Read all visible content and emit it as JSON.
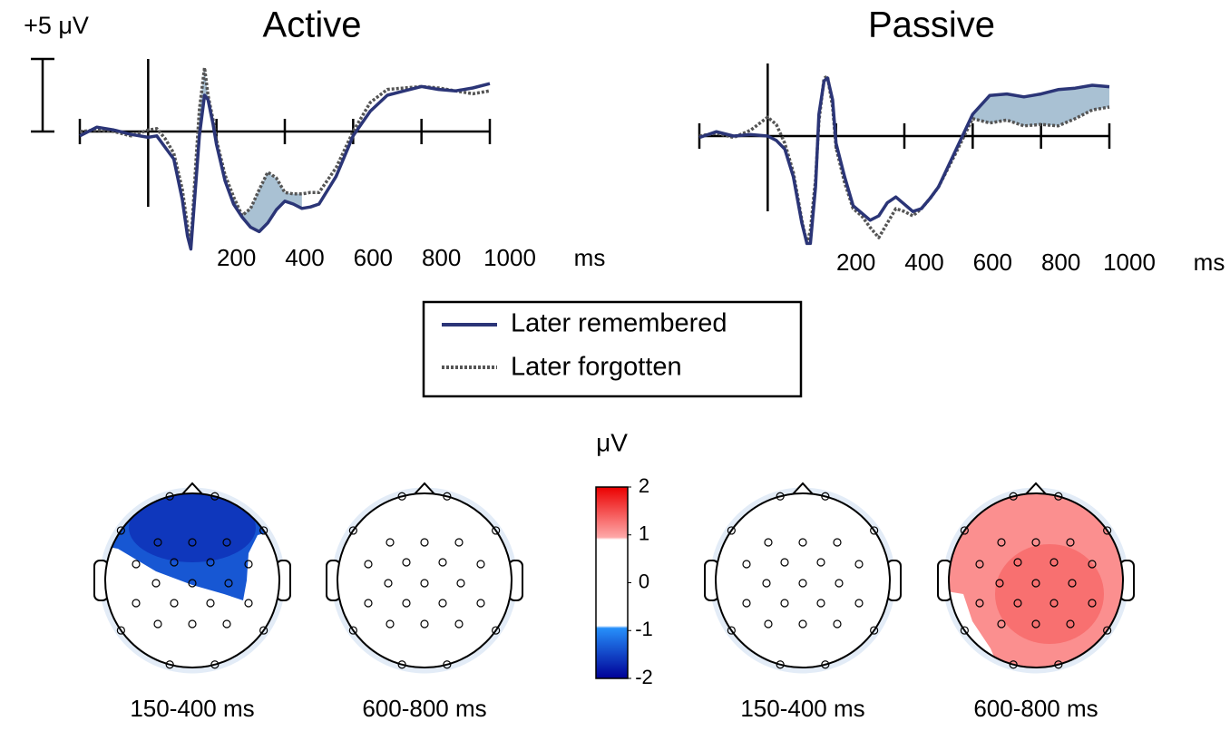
{
  "chart_data": [
    {
      "type": "line",
      "title": "Active",
      "x": [
        -200,
        -150,
        -100,
        -50,
        0,
        25,
        50,
        75,
        100,
        115,
        125,
        140,
        150,
        165,
        175,
        190,
        200,
        225,
        250,
        275,
        300,
        325,
        350,
        375,
        400,
        425,
        450,
        475,
        500,
        550,
        600,
        650,
        700,
        750,
        800,
        850,
        900,
        950,
        1000
      ],
      "xlim": [
        -200,
        1000
      ],
      "xticks": [
        200,
        400,
        600,
        800,
        1000
      ],
      "xlabel": "ms",
      "ylim": [
        -8.5,
        5.5
      ],
      "scalebar": {
        "value": 5,
        "label": "+5 μV"
      },
      "shaded": [
        [
          125,
          175
        ],
        [
          250,
          450
        ]
      ],
      "shade_color": "#a9c1d3",
      "series": [
        {
          "name": "Later remembered",
          "color": "#2b3577",
          "style": "solid",
          "values": [
            -0.3,
            0.3,
            0.1,
            -0.2,
            -0.4,
            -0.3,
            -1.1,
            -1.9,
            -4.7,
            -7.2,
            -8.1,
            -3.4,
            -0.3,
            2.5,
            2.2,
            0.5,
            -0.9,
            -3.4,
            -5.0,
            -5.9,
            -6.6,
            -6.9,
            -6.3,
            -5.4,
            -4.8,
            -5.0,
            -5.3,
            -5.2,
            -5.0,
            -3.1,
            -0.3,
            1.4,
            2.5,
            2.8,
            3.1,
            2.9,
            2.8,
            3.0,
            3.3
          ]
        },
        {
          "name": "Later forgotten",
          "color": "#555555",
          "style": "dotted",
          "values": [
            0,
            0.1,
            0,
            -0.3,
            0.1,
            0.2,
            -0.5,
            -1.5,
            -4.0,
            -6.5,
            -7.8,
            -2.0,
            1.5,
            4.4,
            2.5,
            0.8,
            -0.6,
            -3.0,
            -4.5,
            -5.8,
            -5.3,
            -4.0,
            -2.8,
            -3.2,
            -4.2,
            -4.3,
            -4.3,
            -4.2,
            -4.2,
            -2.5,
            0.0,
            2.0,
            2.9,
            3.0,
            3.1,
            3.0,
            2.8,
            2.6,
            2.8
          ]
        }
      ]
    },
    {
      "type": "line",
      "title": "Passive",
      "x": [
        -200,
        -150,
        -100,
        -50,
        0,
        25,
        50,
        75,
        100,
        115,
        125,
        140,
        150,
        165,
        175,
        190,
        200,
        225,
        250,
        275,
        300,
        325,
        350,
        375,
        400,
        425,
        450,
        475,
        500,
        550,
        600,
        650,
        700,
        750,
        800,
        850,
        900,
        950,
        1000
      ],
      "xlim": [
        -200,
        1000
      ],
      "xticks": [
        200,
        400,
        600,
        800,
        1000
      ],
      "xlabel": "ms",
      "ylim": [
        -8.5,
        5.5
      ],
      "shaded": [
        [
          575,
          1000
        ]
      ],
      "shade_color": "#a9c1d3",
      "series": [
        {
          "name": "Later remembered",
          "color": "#2b3577",
          "style": "solid",
          "values": [
            -0.1,
            0.3,
            0.0,
            0.1,
            0.0,
            -0.3,
            -0.9,
            -2.8,
            -6.0,
            -7.4,
            -7.4,
            -3.5,
            1.5,
            3.8,
            4.0,
            2.5,
            -0.5,
            -2.8,
            -4.8,
            -5.3,
            -5.8,
            -5.5,
            -4.6,
            -4.2,
            -4.7,
            -5.2,
            -5.0,
            -4.3,
            -3.5,
            -1.0,
            1.5,
            2.8,
            2.9,
            2.7,
            2.9,
            3.2,
            3.3,
            3.5,
            3.4
          ]
        },
        {
          "name": "Later forgotten",
          "color": "#555555",
          "style": "dotted",
          "values": [
            0.0,
            0.2,
            -0.1,
            0.4,
            1.3,
            0.8,
            -0.5,
            -2.5,
            -5.8,
            -7.4,
            -6.5,
            -3.0,
            1.0,
            4.0,
            4.1,
            2.0,
            -0.8,
            -3.2,
            -5.0,
            -5.5,
            -6.3,
            -7.0,
            -6.0,
            -5.0,
            -5.2,
            -5.5,
            -5.0,
            -4.3,
            -3.5,
            -1.2,
            1.2,
            0.9,
            1.1,
            0.7,
            0.8,
            0.7,
            1.2,
            1.8,
            2.0
          ]
        }
      ]
    },
    {
      "type": "topomap",
      "colorbar_label": "μV",
      "clim": [
        -2,
        2
      ],
      "cticks": [
        2,
        1,
        0,
        -1,
        -2
      ],
      "maps": [
        {
          "label": "150-400 ms",
          "value": -1.6
        },
        {
          "label": "600-800 ms",
          "value": 0
        },
        {
          "label": "150-400 ms",
          "value": 0
        },
        {
          "label": "600-800 ms",
          "value": 1.3
        }
      ]
    }
  ]
}
